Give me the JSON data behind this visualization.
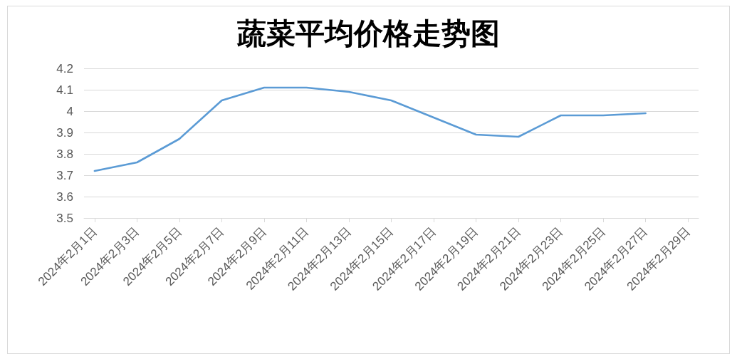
{
  "chart_data": {
    "type": "line",
    "title": "蔬菜平均价格走势图",
    "x": [
      "2024-02-01",
      "2024-02-03",
      "2024-02-05",
      "2024-02-07",
      "2024-02-09",
      "2024-02-11",
      "2024-02-13",
      "2024-02-15",
      "2024-02-17",
      "2024-02-19",
      "2024-02-21",
      "2024-02-23",
      "2024-02-25",
      "2024-02-27"
    ],
    "values": [
      3.72,
      3.76,
      3.87,
      4.05,
      4.11,
      4.11,
      4.09,
      4.05,
      3.97,
      3.89,
      3.88,
      3.98,
      3.98,
      3.99
    ],
    "color": "#5b9bd5",
    "xlim": [
      "2024-01-31T12:00",
      "2024-02-29T12:00"
    ],
    "xticks": [
      {
        "value": "2024-02-01",
        "label": "2024年2月1日"
      },
      {
        "value": "2024-02-03",
        "label": "2024年2月3日"
      },
      {
        "value": "2024-02-05",
        "label": "2024年2月5日"
      },
      {
        "value": "2024-02-07",
        "label": "2024年2月7日"
      },
      {
        "value": "2024-02-09",
        "label": "2024年2月9日"
      },
      {
        "value": "2024-02-11",
        "label": "2024年2月11日"
      },
      {
        "value": "2024-02-13",
        "label": "2024年2月13日"
      },
      {
        "value": "2024-02-15",
        "label": "2024年2月15日"
      },
      {
        "value": "2024-02-17",
        "label": "2024年2月17日"
      },
      {
        "value": "2024-02-19",
        "label": "2024年2月19日"
      },
      {
        "value": "2024-02-21",
        "label": "2024年2月21日"
      },
      {
        "value": "2024-02-23",
        "label": "2024年2月23日"
      },
      {
        "value": "2024-02-25",
        "label": "2024年2月25日"
      },
      {
        "value": "2024-02-27",
        "label": "2024年2月27日"
      },
      {
        "value": "2024-02-29",
        "label": "2024年2月29日"
      }
    ],
    "ylim": [
      3.5,
      4.2
    ],
    "yticks": [
      3.5,
      3.6,
      3.7,
      3.8,
      3.9,
      4,
      4.1,
      4.2
    ],
    "grid": "y",
    "marker": "none",
    "line_style": "solid"
  }
}
